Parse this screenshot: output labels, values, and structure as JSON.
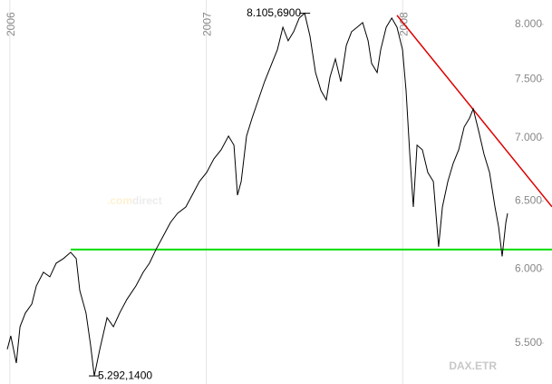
{
  "chart_data": {
    "type": "line",
    "log_scale": true,
    "watermark": [
      ".com",
      "direct"
    ],
    "xlim": [
      2005.95,
      2008.76
    ],
    "xticks": [
      2006,
      2007,
      2008
    ],
    "ylim": [
      5242,
      8233
    ],
    "yticks": [
      {
        "value": 5500,
        "label": "5.500"
      },
      {
        "value": 6000,
        "label": "6.000"
      },
      {
        "value": 6500,
        "label": "6.500"
      },
      {
        "value": 7000,
        "label": "7.000"
      },
      {
        "value": 7500,
        "label": "7.500"
      },
      {
        "value": 8000,
        "label": "8.000"
      }
    ],
    "series": [
      {
        "name": "DAX.ETR",
        "color": "#000000",
        "x": [
          2005.987,
          2006.005,
          2006.033,
          2006.052,
          2006.079,
          2006.112,
          2006.135,
          2006.171,
          2006.204,
          2006.236,
          2006.273,
          2006.31,
          2006.338,
          2006.356,
          2006.388,
          2006.411,
          2006.43,
          2006.458,
          2006.495,
          2006.527,
          2006.559,
          2006.596,
          2006.642,
          2006.679,
          2006.711,
          2006.744,
          2006.781,
          2006.818,
          2006.854,
          2006.896,
          2006.928,
          2006.965,
          2007.002,
          2007.039,
          2007.076,
          2007.113,
          2007.141,
          2007.159,
          2007.178,
          2007.205,
          2007.233,
          2007.265,
          2007.297,
          2007.334,
          2007.362,
          2007.39,
          2007.417,
          2007.445,
          2007.473,
          2007.501,
          2007.528,
          2007.556,
          2007.584,
          2007.611,
          2007.63,
          2007.657,
          2007.685,
          2007.713,
          2007.74,
          2007.768,
          2007.796,
          2007.824,
          2007.842,
          2007.87,
          2007.888,
          2007.916,
          2007.944,
          2007.971,
          2007.999,
          2008.017,
          2008.036,
          2008.054,
          2008.073,
          2008.1,
          2008.128,
          2008.156,
          2008.183,
          2008.202,
          2008.23,
          2008.257,
          2008.285,
          2008.313,
          2008.34,
          2008.359,
          2008.387,
          2008.414,
          2008.442,
          2008.47,
          2008.488,
          2008.506,
          2008.525,
          2008.534
        ],
        "values": [
          5460,
          5547,
          5373,
          5607,
          5698,
          5759,
          5883,
          5978,
          5946,
          6042,
          6075,
          6120,
          6075,
          5852,
          5698,
          5489,
          5292.14,
          5460,
          5667,
          5607,
          5698,
          5790,
          5883,
          5978,
          6042,
          6140,
          6238,
          6339,
          6407,
          6455,
          6545,
          6651,
          6722,
          6831,
          6904,
          7016,
          6941,
          6545,
          6651,
          7016,
          7166,
          7321,
          7480,
          7641,
          7765,
          7974,
          7848,
          7932,
          8060,
          8105.69,
          7890,
          7560,
          7401,
          7321,
          7520,
          7682,
          7480,
          7806,
          7932,
          7974,
          8017,
          7848,
          7641,
          7560,
          7765,
          7974,
          8060,
          7974,
          7765,
          7401,
          6868,
          6455,
          6941,
          6904,
          6722,
          6651,
          6160,
          6455,
          6651,
          6795,
          6904,
          7091,
          7166,
          7244,
          7054,
          6868,
          6722,
          6455,
          6306,
          6090,
          6339,
          6407
        ]
      }
    ],
    "annotations": [
      {
        "text": "8.105,6900",
        "x": 2007.501,
        "y": 8105.69
      },
      {
        "text": "5.292,1400",
        "x": 2006.43,
        "y": 5292.14
      }
    ],
    "hlines": [
      {
        "y": 6140,
        "x_start": 2006.31,
        "color": "#00dd00"
      }
    ],
    "trendlines": [
      {
        "x": [
          2007.971,
          2008.76
        ],
        "y": [
          8086,
          6456
        ],
        "color": "#dd0000"
      }
    ]
  }
}
